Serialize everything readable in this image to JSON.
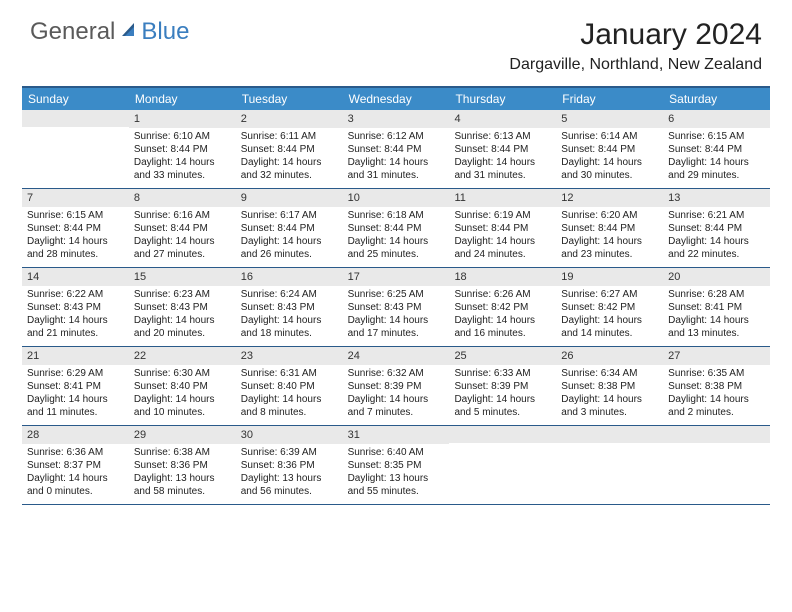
{
  "brand": {
    "part1": "General",
    "part2": "Blue"
  },
  "title": "January 2024",
  "location": "Dargaville, Northland, New Zealand",
  "colors": {
    "header_bar": "#3b8bc8",
    "rule": "#2a5a8a",
    "day_num_bg": "#e9e9e9",
    "logo_gray": "#5a5a5a",
    "logo_blue": "#3a7ebf"
  },
  "daysOfWeek": [
    "Sunday",
    "Monday",
    "Tuesday",
    "Wednesday",
    "Thursday",
    "Friday",
    "Saturday"
  ],
  "weeks": [
    [
      {
        "n": "",
        "sr": "",
        "ss": "",
        "dl": ""
      },
      {
        "n": "1",
        "sr": "Sunrise: 6:10 AM",
        "ss": "Sunset: 8:44 PM",
        "dl": "Daylight: 14 hours and 33 minutes."
      },
      {
        "n": "2",
        "sr": "Sunrise: 6:11 AM",
        "ss": "Sunset: 8:44 PM",
        "dl": "Daylight: 14 hours and 32 minutes."
      },
      {
        "n": "3",
        "sr": "Sunrise: 6:12 AM",
        "ss": "Sunset: 8:44 PM",
        "dl": "Daylight: 14 hours and 31 minutes."
      },
      {
        "n": "4",
        "sr": "Sunrise: 6:13 AM",
        "ss": "Sunset: 8:44 PM",
        "dl": "Daylight: 14 hours and 31 minutes."
      },
      {
        "n": "5",
        "sr": "Sunrise: 6:14 AM",
        "ss": "Sunset: 8:44 PM",
        "dl": "Daylight: 14 hours and 30 minutes."
      },
      {
        "n": "6",
        "sr": "Sunrise: 6:15 AM",
        "ss": "Sunset: 8:44 PM",
        "dl": "Daylight: 14 hours and 29 minutes."
      }
    ],
    [
      {
        "n": "7",
        "sr": "Sunrise: 6:15 AM",
        "ss": "Sunset: 8:44 PM",
        "dl": "Daylight: 14 hours and 28 minutes."
      },
      {
        "n": "8",
        "sr": "Sunrise: 6:16 AM",
        "ss": "Sunset: 8:44 PM",
        "dl": "Daylight: 14 hours and 27 minutes."
      },
      {
        "n": "9",
        "sr": "Sunrise: 6:17 AM",
        "ss": "Sunset: 8:44 PM",
        "dl": "Daylight: 14 hours and 26 minutes."
      },
      {
        "n": "10",
        "sr": "Sunrise: 6:18 AM",
        "ss": "Sunset: 8:44 PM",
        "dl": "Daylight: 14 hours and 25 minutes."
      },
      {
        "n": "11",
        "sr": "Sunrise: 6:19 AM",
        "ss": "Sunset: 8:44 PM",
        "dl": "Daylight: 14 hours and 24 minutes."
      },
      {
        "n": "12",
        "sr": "Sunrise: 6:20 AM",
        "ss": "Sunset: 8:44 PM",
        "dl": "Daylight: 14 hours and 23 minutes."
      },
      {
        "n": "13",
        "sr": "Sunrise: 6:21 AM",
        "ss": "Sunset: 8:44 PM",
        "dl": "Daylight: 14 hours and 22 minutes."
      }
    ],
    [
      {
        "n": "14",
        "sr": "Sunrise: 6:22 AM",
        "ss": "Sunset: 8:43 PM",
        "dl": "Daylight: 14 hours and 21 minutes."
      },
      {
        "n": "15",
        "sr": "Sunrise: 6:23 AM",
        "ss": "Sunset: 8:43 PM",
        "dl": "Daylight: 14 hours and 20 minutes."
      },
      {
        "n": "16",
        "sr": "Sunrise: 6:24 AM",
        "ss": "Sunset: 8:43 PM",
        "dl": "Daylight: 14 hours and 18 minutes."
      },
      {
        "n": "17",
        "sr": "Sunrise: 6:25 AM",
        "ss": "Sunset: 8:43 PM",
        "dl": "Daylight: 14 hours and 17 minutes."
      },
      {
        "n": "18",
        "sr": "Sunrise: 6:26 AM",
        "ss": "Sunset: 8:42 PM",
        "dl": "Daylight: 14 hours and 16 minutes."
      },
      {
        "n": "19",
        "sr": "Sunrise: 6:27 AM",
        "ss": "Sunset: 8:42 PM",
        "dl": "Daylight: 14 hours and 14 minutes."
      },
      {
        "n": "20",
        "sr": "Sunrise: 6:28 AM",
        "ss": "Sunset: 8:41 PM",
        "dl": "Daylight: 14 hours and 13 minutes."
      }
    ],
    [
      {
        "n": "21",
        "sr": "Sunrise: 6:29 AM",
        "ss": "Sunset: 8:41 PM",
        "dl": "Daylight: 14 hours and 11 minutes."
      },
      {
        "n": "22",
        "sr": "Sunrise: 6:30 AM",
        "ss": "Sunset: 8:40 PM",
        "dl": "Daylight: 14 hours and 10 minutes."
      },
      {
        "n": "23",
        "sr": "Sunrise: 6:31 AM",
        "ss": "Sunset: 8:40 PM",
        "dl": "Daylight: 14 hours and 8 minutes."
      },
      {
        "n": "24",
        "sr": "Sunrise: 6:32 AM",
        "ss": "Sunset: 8:39 PM",
        "dl": "Daylight: 14 hours and 7 minutes."
      },
      {
        "n": "25",
        "sr": "Sunrise: 6:33 AM",
        "ss": "Sunset: 8:39 PM",
        "dl": "Daylight: 14 hours and 5 minutes."
      },
      {
        "n": "26",
        "sr": "Sunrise: 6:34 AM",
        "ss": "Sunset: 8:38 PM",
        "dl": "Daylight: 14 hours and 3 minutes."
      },
      {
        "n": "27",
        "sr": "Sunrise: 6:35 AM",
        "ss": "Sunset: 8:38 PM",
        "dl": "Daylight: 14 hours and 2 minutes."
      }
    ],
    [
      {
        "n": "28",
        "sr": "Sunrise: 6:36 AM",
        "ss": "Sunset: 8:37 PM",
        "dl": "Daylight: 14 hours and 0 minutes."
      },
      {
        "n": "29",
        "sr": "Sunrise: 6:38 AM",
        "ss": "Sunset: 8:36 PM",
        "dl": "Daylight: 13 hours and 58 minutes."
      },
      {
        "n": "30",
        "sr": "Sunrise: 6:39 AM",
        "ss": "Sunset: 8:36 PM",
        "dl": "Daylight: 13 hours and 56 minutes."
      },
      {
        "n": "31",
        "sr": "Sunrise: 6:40 AM",
        "ss": "Sunset: 8:35 PM",
        "dl": "Daylight: 13 hours and 55 minutes."
      },
      {
        "n": "",
        "sr": "",
        "ss": "",
        "dl": ""
      },
      {
        "n": "",
        "sr": "",
        "ss": "",
        "dl": ""
      },
      {
        "n": "",
        "sr": "",
        "ss": "",
        "dl": ""
      }
    ]
  ]
}
